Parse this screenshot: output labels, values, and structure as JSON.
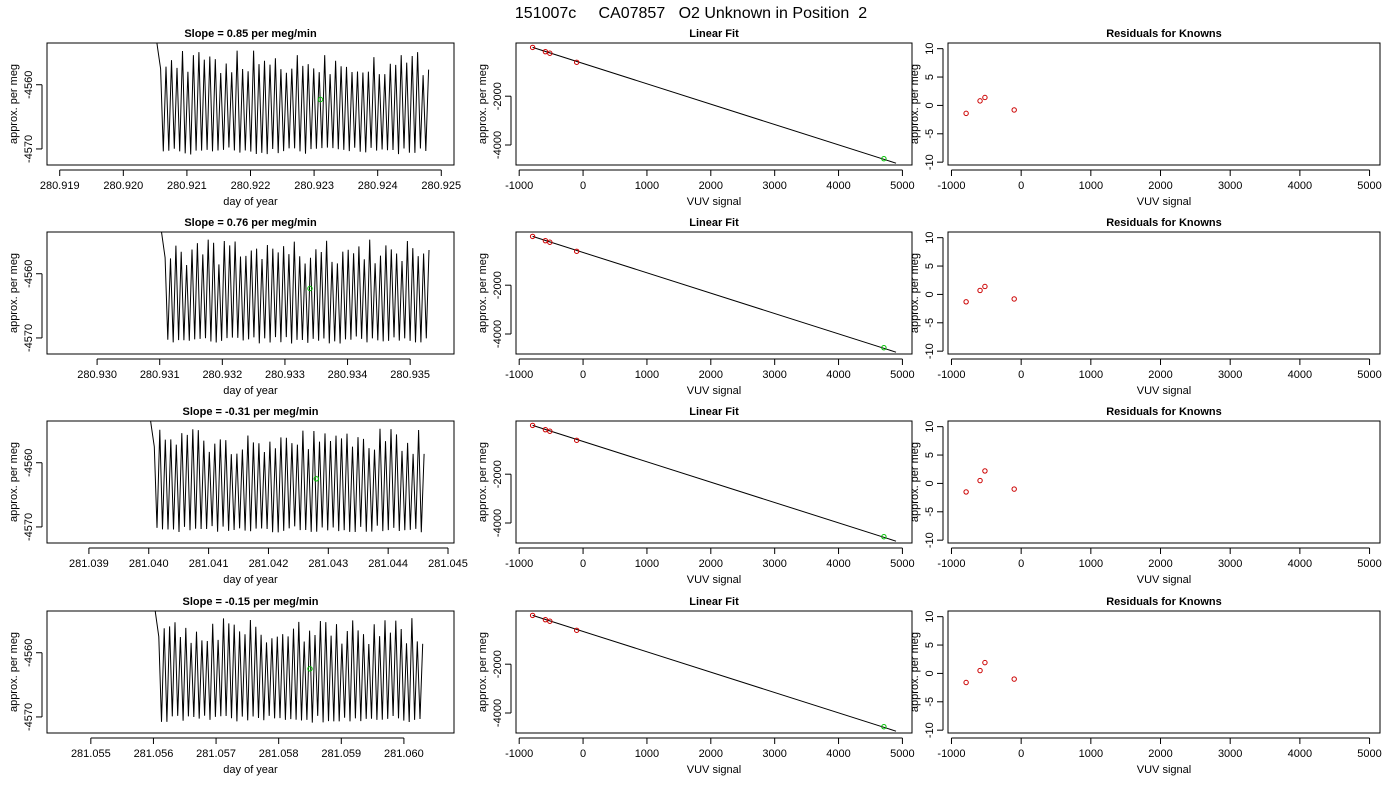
{
  "page_title": "151007c     CA07857   O2 Unknown in Position  2",
  "chart_data": [
    {
      "row": 0,
      "timeseries": {
        "type": "line",
        "title": "Slope =  0.85  per meg/min",
        "xlabel": "day of year",
        "ylabel": "approx. per meg",
        "xlim": [
          280.9188,
          280.9252
        ],
        "ylim": [
          -4572.5,
          -4553.5
        ],
        "xticks": [
          280.919,
          280.92,
          280.921,
          280.922,
          280.923,
          280.924,
          280.925
        ],
        "xtick_labels": [
          "280.919",
          "280.920",
          "280.921",
          "280.922",
          "280.923",
          "280.924",
          "280.925"
        ],
        "yticks": [
          -4570,
          -4560
        ],
        "ytick_labels": [
          "-4570",
          "-4560"
        ],
        "x_start": 280.9205,
        "x_end": 280.9248,
        "n_points": 100,
        "signal_center": -4563.5,
        "signal_amplitude": 6.5,
        "mean_point": {
          "x": 280.9231,
          "y": -4562.3
        },
        "line_color": "#000000",
        "mean_point_color": "#00c000"
      },
      "linear_fit": {
        "type": "scatter",
        "title": "Linear Fit",
        "xlabel": "VUV signal",
        "ylabel": "approx. per meg",
        "xlim": [
          -1050,
          5150
        ],
        "ylim": [
          -4820,
          180
        ],
        "xticks": [
          -1000,
          0,
          1000,
          2000,
          3000,
          4000,
          5000
        ],
        "xtick_labels": [
          "-1000",
          "0",
          "1000",
          "2000",
          "3000",
          "4000",
          "5000"
        ],
        "yticks": [
          -4000,
          -2000
        ],
        "ytick_labels": [
          "-4000",
          "-2000"
        ],
        "knowns": [
          {
            "x": -790,
            "y": 0
          },
          {
            "x": -590,
            "y": -175
          },
          {
            "x": -520,
            "y": -240
          },
          {
            "x": -100,
            "y": -610
          }
        ],
        "unknown": {
          "x": 4710,
          "y": -4562
        },
        "fit_line": {
          "x": [
            -790,
            4900
          ],
          "y": [
            0,
            -4745
          ]
        },
        "known_color": "#cc0000",
        "unknown_color": "#00c000",
        "line_color": "#000000"
      },
      "residuals": {
        "type": "scatter",
        "title": "Residuals for Knowns",
        "xlabel": "VUV signal",
        "ylabel": "approx. per meg",
        "xlim": [
          -1050,
          5150
        ],
        "ylim": [
          -10.5,
          11
        ],
        "xticks": [
          -1000,
          0,
          1000,
          2000,
          3000,
          4000,
          5000
        ],
        "xtick_labels": [
          "-1000",
          "0",
          "1000",
          "2000",
          "3000",
          "4000",
          "5000"
        ],
        "yticks": [
          -10,
          -5,
          0,
          5,
          10
        ],
        "ytick_labels": [
          "-10",
          "-5",
          "0",
          "5",
          "10"
        ],
        "points": [
          {
            "x": -790,
            "y": -1.4
          },
          {
            "x": -590,
            "y": 0.8
          },
          {
            "x": -520,
            "y": 1.4
          },
          {
            "x": -100,
            "y": -0.8
          }
        ],
        "point_color": "#cc0000"
      }
    },
    {
      "row": 1,
      "timeseries": {
        "type": "line",
        "title": "Slope =  0.76  per meg/min",
        "xlabel": "day of year",
        "ylabel": "approx. per meg",
        "xlim": [
          280.9292,
          280.9357
        ],
        "ylim": [
          -4572.5,
          -4553.5
        ],
        "xticks": [
          280.93,
          280.931,
          280.932,
          280.933,
          280.934,
          280.935
        ],
        "xtick_labels": [
          "280.930",
          "280.931",
          "280.932",
          "280.933",
          "280.934",
          "280.935"
        ],
        "yticks": [
          -4570,
          -4560
        ],
        "ytick_labels": [
          "-4570",
          "-4560"
        ],
        "x_start": 280.931,
        "x_end": 280.9353,
        "n_points": 100,
        "signal_center": -4563.5,
        "signal_amplitude": 6.5,
        "mean_point": {
          "x": 280.9334,
          "y": -4562.3
        },
        "line_color": "#000000",
        "mean_point_color": "#00c000"
      },
      "linear_fit": {
        "type": "scatter",
        "title": "Linear Fit",
        "xlabel": "VUV signal",
        "ylabel": "approx. per meg",
        "xlim": [
          -1050,
          5150
        ],
        "ylim": [
          -4820,
          180
        ],
        "xticks": [
          -1000,
          0,
          1000,
          2000,
          3000,
          4000,
          5000
        ],
        "xtick_labels": [
          "-1000",
          "0",
          "1000",
          "2000",
          "3000",
          "4000",
          "5000"
        ],
        "yticks": [
          -4000,
          -2000
        ],
        "ytick_labels": [
          "-4000",
          "-2000"
        ],
        "knowns": [
          {
            "x": -790,
            "y": 0
          },
          {
            "x": -590,
            "y": -175
          },
          {
            "x": -520,
            "y": -240
          },
          {
            "x": -100,
            "y": -610
          }
        ],
        "unknown": {
          "x": 4710,
          "y": -4562
        },
        "fit_line": {
          "x": [
            -790,
            4900
          ],
          "y": [
            0,
            -4745
          ]
        },
        "known_color": "#cc0000",
        "unknown_color": "#00c000",
        "line_color": "#000000"
      },
      "residuals": {
        "type": "scatter",
        "title": "Residuals for Knowns",
        "xlabel": "VUV signal",
        "ylabel": "approx. per meg",
        "xlim": [
          -1050,
          5150
        ],
        "ylim": [
          -10.5,
          11
        ],
        "xticks": [
          -1000,
          0,
          1000,
          2000,
          3000,
          4000,
          5000
        ],
        "xtick_labels": [
          "-1000",
          "0",
          "1000",
          "2000",
          "3000",
          "4000",
          "5000"
        ],
        "yticks": [
          -10,
          -5,
          0,
          5,
          10
        ],
        "ytick_labels": [
          "-10",
          "-5",
          "0",
          "5",
          "10"
        ],
        "points": [
          {
            "x": -790,
            "y": -1.3
          },
          {
            "x": -590,
            "y": 0.7
          },
          {
            "x": -520,
            "y": 1.4
          },
          {
            "x": -100,
            "y": -0.8
          }
        ],
        "point_color": "#cc0000"
      }
    },
    {
      "row": 2,
      "timeseries": {
        "type": "line",
        "title": "Slope =  -0.31  per meg/min",
        "xlabel": "day of year",
        "ylabel": "approx. per meg",
        "xlim": [
          281.0383,
          281.0451
        ],
        "ylim": [
          -4572.5,
          -4553.5
        ],
        "xticks": [
          281.039,
          281.04,
          281.041,
          281.042,
          281.043,
          281.044,
          281.045
        ],
        "xtick_labels": [
          "281.039",
          "281.040",
          "281.041",
          "281.042",
          "281.043",
          "281.044",
          "281.045"
        ],
        "yticks": [
          -4570,
          -4560
        ],
        "ytick_labels": [
          "-4570",
          "-4560"
        ],
        "x_start": 281.04,
        "x_end": 281.0446,
        "n_points": 100,
        "signal_center": -4563.5,
        "signal_amplitude": 6.5,
        "mean_point": {
          "x": 281.0428,
          "y": -4562.5
        },
        "line_color": "#000000",
        "mean_point_color": "#00c000"
      },
      "linear_fit": {
        "type": "scatter",
        "title": "Linear Fit",
        "xlabel": "VUV signal",
        "ylabel": "approx. per meg",
        "xlim": [
          -1050,
          5150
        ],
        "ylim": [
          -4820,
          180
        ],
        "xticks": [
          -1000,
          0,
          1000,
          2000,
          3000,
          4000,
          5000
        ],
        "xtick_labels": [
          "-1000",
          "0",
          "1000",
          "2000",
          "3000",
          "4000",
          "5000"
        ],
        "yticks": [
          -4000,
          -2000
        ],
        "ytick_labels": [
          "-4000",
          "-2000"
        ],
        "knowns": [
          {
            "x": -790,
            "y": 0
          },
          {
            "x": -590,
            "y": -175
          },
          {
            "x": -520,
            "y": -240
          },
          {
            "x": -100,
            "y": -610
          }
        ],
        "unknown": {
          "x": 4710,
          "y": -4562
        },
        "fit_line": {
          "x": [
            -790,
            4900
          ],
          "y": [
            0,
            -4745
          ]
        },
        "known_color": "#cc0000",
        "unknown_color": "#00c000",
        "line_color": "#000000"
      },
      "residuals": {
        "type": "scatter",
        "title": "Residuals for Knowns",
        "xlabel": "VUV signal",
        "ylabel": "approx. per meg",
        "xlim": [
          -1050,
          5150
        ],
        "ylim": [
          -10.5,
          11
        ],
        "xticks": [
          -1000,
          0,
          1000,
          2000,
          3000,
          4000,
          5000
        ],
        "xtick_labels": [
          "-1000",
          "0",
          "1000",
          "2000",
          "3000",
          "4000",
          "5000"
        ],
        "yticks": [
          -10,
          -5,
          0,
          5,
          10
        ],
        "ytick_labels": [
          "-10",
          "-5",
          "0",
          "5",
          "10"
        ],
        "points": [
          {
            "x": -790,
            "y": -1.5
          },
          {
            "x": -590,
            "y": 0.5
          },
          {
            "x": -520,
            "y": 2.2
          },
          {
            "x": -100,
            "y": -1.0
          }
        ],
        "point_color": "#cc0000"
      }
    },
    {
      "row": 3,
      "timeseries": {
        "type": "line",
        "title": "Slope =  -0.15  per meg/min",
        "xlabel": "day of year",
        "ylabel": "approx. per meg",
        "xlim": [
          281.0543,
          281.0608
        ],
        "ylim": [
          -4572.5,
          -4553.5
        ],
        "xticks": [
          281.055,
          281.056,
          281.057,
          281.058,
          281.059,
          281.06
        ],
        "xtick_labels": [
          "281.055",
          "281.056",
          "281.057",
          "281.058",
          "281.059",
          "281.060"
        ],
        "yticks": [
          -4570,
          -4560
        ],
        "ytick_labels": [
          "-4570",
          "-4560"
        ],
        "x_start": 281.056,
        "x_end": 281.0603,
        "n_points": 100,
        "signal_center": -4563.5,
        "signal_amplitude": 6.5,
        "mean_point": {
          "x": 281.0585,
          "y": -4562.5
        },
        "line_color": "#000000",
        "mean_point_color": "#00c000"
      },
      "linear_fit": {
        "type": "scatter",
        "title": "Linear Fit",
        "xlabel": "VUV signal",
        "ylabel": "approx. per meg",
        "xlim": [
          -1050,
          5150
        ],
        "ylim": [
          -4820,
          180
        ],
        "xticks": [
          -1000,
          0,
          1000,
          2000,
          3000,
          4000,
          5000
        ],
        "xtick_labels": [
          "-1000",
          "0",
          "1000",
          "2000",
          "3000",
          "4000",
          "5000"
        ],
        "yticks": [
          -4000,
          -2000
        ],
        "ytick_labels": [
          "-4000",
          "-2000"
        ],
        "knowns": [
          {
            "x": -790,
            "y": 0
          },
          {
            "x": -590,
            "y": -175
          },
          {
            "x": -520,
            "y": -240
          },
          {
            "x": -100,
            "y": -610
          }
        ],
        "unknown": {
          "x": 4710,
          "y": -4562
        },
        "fit_line": {
          "x": [
            -790,
            4900
          ],
          "y": [
            0,
            -4745
          ]
        },
        "known_color": "#cc0000",
        "unknown_color": "#00c000",
        "line_color": "#000000"
      },
      "residuals": {
        "type": "scatter",
        "title": "Residuals for Knowns",
        "xlabel": "VUV signal",
        "ylabel": "approx. per meg",
        "xlim": [
          -1050,
          5150
        ],
        "ylim": [
          -10.5,
          11
        ],
        "xticks": [
          -1000,
          0,
          1000,
          2000,
          3000,
          4000,
          5000
        ],
        "xtick_labels": [
          "-1000",
          "0",
          "1000",
          "2000",
          "3000",
          "4000",
          "5000"
        ],
        "yticks": [
          -10,
          -5,
          0,
          5,
          10
        ],
        "ytick_labels": [
          "-10",
          "-5",
          "0",
          "5",
          "10"
        ],
        "points": [
          {
            "x": -790,
            "y": -1.6
          },
          {
            "x": -590,
            "y": 0.5
          },
          {
            "x": -520,
            "y": 1.9
          },
          {
            "x": -100,
            "y": -1.0
          }
        ],
        "point_color": "#cc0000"
      }
    }
  ]
}
